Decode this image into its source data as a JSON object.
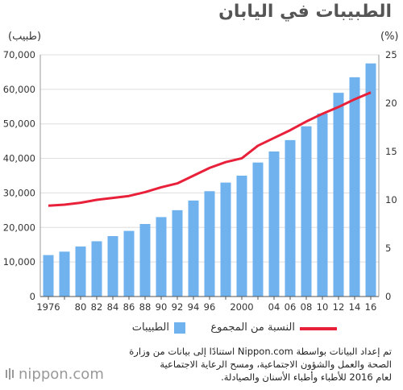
{
  "chart_data": {
    "type": "bar",
    "title": "الطبيبات في اليابان",
    "y_left_label": "(طبيب)",
    "y_right_label": "(%)",
    "y_left_lim": [
      0,
      70000
    ],
    "y_left_ticks": [
      "0",
      "10,000",
      "20,000",
      "30,000",
      "40,000",
      "50,000",
      "60,000",
      "70,000"
    ],
    "y_right_lim": [
      0,
      25
    ],
    "y_right_ticks": [
      "0",
      "5",
      "10",
      "15",
      "20",
      "25"
    ],
    "x": [
      1976,
      1978,
      1980,
      1982,
      1984,
      1986,
      1988,
      1990,
      1992,
      1994,
      1996,
      1998,
      2000,
      2002,
      2004,
      2006,
      2008,
      2010,
      2012,
      2014,
      2016
    ],
    "x_tick_labels": [
      "1976",
      "",
      "80",
      "82",
      "84",
      "86",
      "88",
      "90",
      "92",
      "94",
      "96",
      "",
      "2000",
      "",
      "04",
      "06",
      "08",
      "10",
      "12",
      "14",
      "16"
    ],
    "series": [
      {
        "name": "الطبيبات",
        "type": "bar",
        "axis": "left",
        "color": "#6fb2ee",
        "values": [
          12000,
          13000,
          14500,
          16000,
          17500,
          19000,
          21000,
          23000,
          25000,
          27800,
          30500,
          33000,
          35000,
          38800,
          42000,
          45300,
          49300,
          53000,
          59000,
          63500,
          67500
        ]
      },
      {
        "name": "النسبة من المجموع",
        "type": "line",
        "axis": "right",
        "color": "#e8203a",
        "values": [
          9.4,
          9.5,
          9.7,
          10.0,
          10.2,
          10.4,
          10.8,
          11.3,
          11.7,
          12.5,
          13.3,
          13.9,
          14.3,
          15.6,
          16.4,
          17.2,
          18.1,
          18.9,
          19.6,
          20.4,
          21.1
        ]
      }
    ],
    "grid": true,
    "legend_position": "bottom"
  },
  "legend": {
    "line_label": "النسبة من المجموع",
    "bar_label": "الطبيبات"
  },
  "note": {
    "line1": "تم إعداد البيانات بواسطة Nippon.com استنادًا إلى بيانات من وزارة",
    "line2": "الصحة والعمل والشؤون الاجتماعية، ومسح الرعاية الاجتماعية",
    "line3": "لعام 2016 للأطباء وأطباء الأسنان والصيادلة."
  },
  "brand": "nippon.com",
  "colors": {
    "bar": "#6fb2ee",
    "line": "#e8203a",
    "grid": "#dddddd"
  }
}
